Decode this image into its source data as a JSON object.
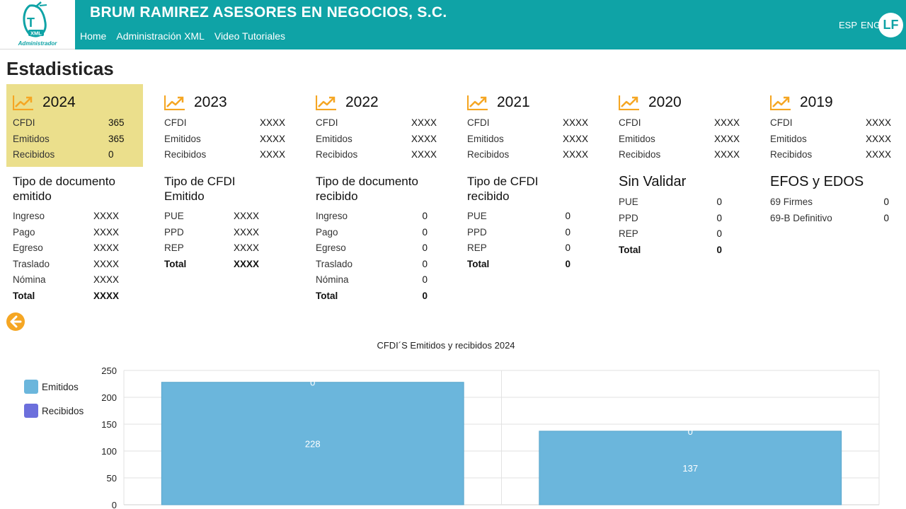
{
  "header": {
    "company": "BRUM RAMIREZ ASESORES EN NEGOCIOS, S.C.",
    "logo_caption": "Administrador",
    "logo_letter": "T",
    "logo_badge": "XML",
    "nav": [
      "Home",
      "Administración XML",
      "Video Tutoriales"
    ],
    "lang": [
      "ESP",
      "ENG"
    ],
    "user_initials": "LF"
  },
  "page_title": "Estadisticas",
  "years": [
    {
      "year": "2024",
      "stats": [
        {
          "label": "CFDI",
          "value": "365"
        },
        {
          "label": "Emitidos",
          "value": "365"
        },
        {
          "label": "Recibidos",
          "value": "0"
        }
      ]
    },
    {
      "year": "2023",
      "stats": [
        {
          "label": "CFDI",
          "value": "XXXX"
        },
        {
          "label": "Emitidos",
          "value": "XXXX"
        },
        {
          "label": "Recibidos",
          "value": "XXXX"
        }
      ]
    },
    {
      "year": "2022",
      "stats": [
        {
          "label": "CFDI",
          "value": "XXXX"
        },
        {
          "label": "Emitidos",
          "value": "XXXX"
        },
        {
          "label": "Recibidos",
          "value": "XXXX"
        }
      ]
    },
    {
      "year": "2021",
      "stats": [
        {
          "label": "CFDI",
          "value": "XXXX"
        },
        {
          "label": "Emitidos",
          "value": "XXXX"
        },
        {
          "label": "Recibidos",
          "value": "XXXX"
        }
      ]
    },
    {
      "year": "2020",
      "stats": [
        {
          "label": "CFDI",
          "value": "XXXX"
        },
        {
          "label": "Emitidos",
          "value": "XXXX"
        },
        {
          "label": "Recibidos",
          "value": "XXXX"
        }
      ]
    },
    {
      "year": "2019",
      "stats": [
        {
          "label": "CFDI",
          "value": "XXXX"
        },
        {
          "label": "Emitidos",
          "value": "XXXX"
        },
        {
          "label": "Recibidos",
          "value": "XXXX"
        }
      ]
    }
  ],
  "sections": [
    {
      "title": "Tipo de documento emitido",
      "rows": [
        {
          "label": "Ingreso",
          "value": "XXXX"
        },
        {
          "label": "Pago",
          "value": "XXXX"
        },
        {
          "label": "Egreso",
          "value": "XXXX"
        },
        {
          "label": "Traslado",
          "value": "XXXX"
        },
        {
          "label": "Nómina",
          "value": "XXXX"
        }
      ],
      "total": {
        "label": "Total",
        "value": "XXXX"
      }
    },
    {
      "title": "Tipo de CFDI Emitido",
      "rows": [
        {
          "label": "PUE",
          "value": "XXXX"
        },
        {
          "label": "PPD",
          "value": "XXXX"
        },
        {
          "label": "REP",
          "value": "XXXX"
        }
      ],
      "total": {
        "label": "Total",
        "value": "XXXX"
      }
    },
    {
      "title": "Tipo de documento recibido",
      "rows": [
        {
          "label": "Ingreso",
          "value": "0"
        },
        {
          "label": "Pago",
          "value": "0"
        },
        {
          "label": "Egreso",
          "value": "0"
        },
        {
          "label": "Traslado",
          "value": "0"
        },
        {
          "label": "Nómina",
          "value": "0"
        }
      ],
      "total": {
        "label": "Total",
        "value": "0"
      }
    },
    {
      "title": "Tipo de CFDI recibido",
      "rows": [
        {
          "label": "PUE",
          "value": "0"
        },
        {
          "label": "PPD",
          "value": "0"
        },
        {
          "label": "REP",
          "value": "0"
        }
      ],
      "total": {
        "label": "Total",
        "value": "0"
      }
    },
    {
      "title": "Sin Validar",
      "rows": [
        {
          "label": "PUE",
          "value": "0"
        },
        {
          "label": "PPD",
          "value": "0"
        },
        {
          "label": "REP",
          "value": "0"
        }
      ],
      "total": {
        "label": "Total",
        "value": "0"
      }
    },
    {
      "title": "EFOS y EDOS",
      "rows": [
        {
          "label": "69 Firmes",
          "value": "0"
        },
        {
          "label": "69-B Definitivo",
          "value": "0"
        }
      ]
    }
  ],
  "colors": {
    "header": "#0fa3a6",
    "accent": "#f5a623",
    "active_card": "#ebdf8c",
    "emitidos": "#6bb6dc",
    "recibidos": "#6c6fdc"
  },
  "icons": {
    "year": "trend-up-icon",
    "back": "arrow-left-icon"
  },
  "chart_data": {
    "type": "bar",
    "title": "CFDI´S Emitidos y recibidos 2024",
    "categories": [
      "",
      ""
    ],
    "series": [
      {
        "name": "Emitidos",
        "values": [
          228,
          137
        ]
      },
      {
        "name": "Recibidos",
        "values": [
          0,
          0
        ]
      }
    ],
    "stacked": true,
    "ylim": [
      0,
      250
    ],
    "yticks": [
      "0",
      "50",
      "100",
      "150",
      "200",
      "250"
    ],
    "grid": true,
    "legend": "left"
  }
}
